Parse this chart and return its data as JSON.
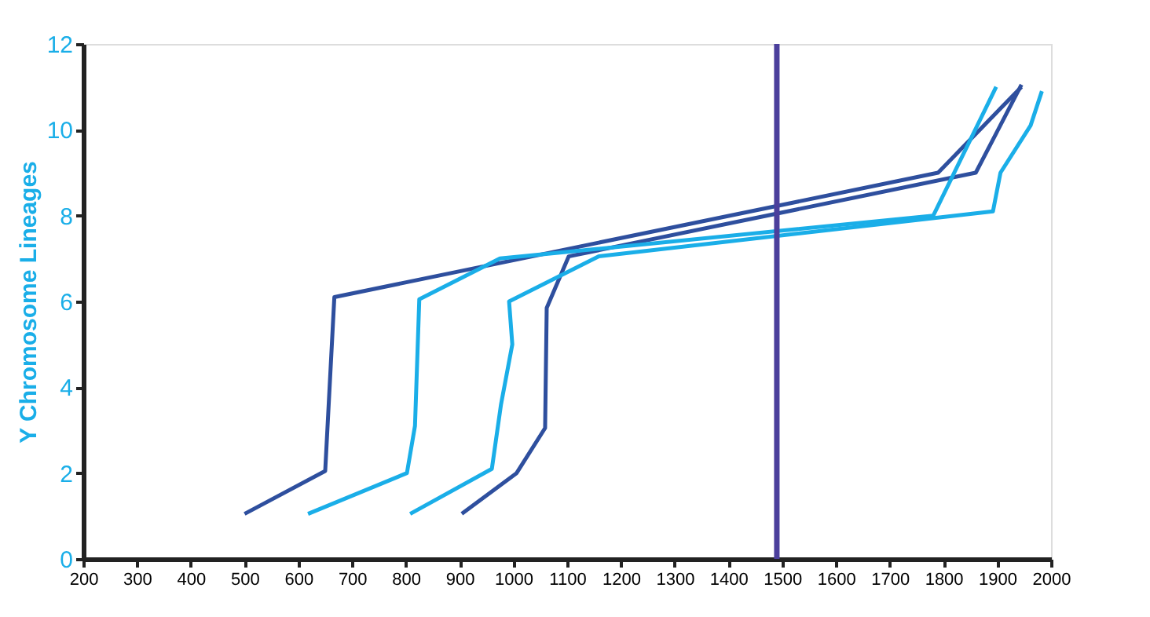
{
  "chart_data": {
    "type": "line",
    "ylabel": "Y Chromosome Lineages",
    "xlim": [
      200,
      2000
    ],
    "xticks": [
      200,
      300,
      400,
      500,
      600,
      700,
      800,
      900,
      1000,
      1100,
      1200,
      1300,
      1400,
      1500,
      1600,
      1700,
      1800,
      1900,
      2000
    ],
    "ylim": [
      0,
      12
    ],
    "yticks": [
      0,
      2,
      4,
      6,
      8,
      10,
      12
    ],
    "grid": false,
    "marker": "none",
    "line_style": "solid",
    "series": [
      {
        "color": "#2e4f9e",
        "x": [
          500,
          650,
          667,
          1790,
          1945
        ],
        "values": [
          1.05,
          2.05,
          6.1,
          9.0,
          11.0
        ]
      },
      {
        "color": "#2e4f9e",
        "x": [
          904,
          1006,
          1059,
          1062,
          1103,
          1860,
          1945
        ],
        "values": [
          1.05,
          2.0,
          3.05,
          5.85,
          7.05,
          9.0,
          11.05
        ]
      },
      {
        "color": "#1aaee8",
        "x": [
          618,
          802,
          817,
          825,
          975,
          1781,
          1898
        ],
        "values": [
          1.05,
          2.0,
          3.1,
          6.05,
          7.0,
          8.0,
          11.0
        ]
      },
      {
        "color": "#1aaee8",
        "x": [
          808,
          960,
          977,
          998,
          992,
          1159,
          1892,
          1906,
          1962,
          1983
        ],
        "values": [
          1.05,
          2.1,
          3.6,
          5.0,
          6.0,
          7.05,
          8.1,
          9.0,
          10.1,
          10.9
        ]
      }
    ],
    "ref_lines": [
      {
        "axis": "x",
        "value": 1490,
        "color": "#4b3f9c"
      }
    ]
  }
}
